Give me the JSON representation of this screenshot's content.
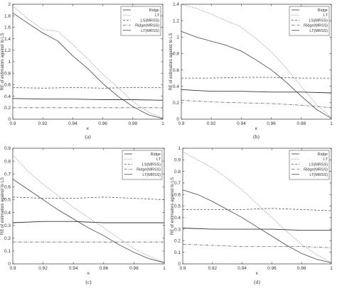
{
  "chart_data": [
    {
      "type": "line",
      "caption": "(a)",
      "xlabel": "κ",
      "ylabel": "RE of estimators against to LS",
      "xlim": [
        0.9,
        1.0
      ],
      "ylim": [
        0,
        2
      ],
      "xticks": [
        "0.9",
        "0.92",
        "0.94",
        "0.96",
        "0.98",
        "1"
      ],
      "yticks": [
        "0",
        "0.2",
        "0.4",
        "0.6",
        "0.8",
        "1",
        "1.2",
        "1.4",
        "1.6",
        "1.8",
        "2"
      ],
      "legend_position": "top-right",
      "series": [
        {
          "name": "Ridge",
          "style": "solid-dark",
          "x": [
            0.9,
            0.92,
            0.94,
            0.96,
            0.98,
            1.0
          ],
          "y": [
            0.36,
            0.35,
            0.35,
            0.34,
            0.34,
            0.33
          ]
        },
        {
          "name": "LT",
          "style": "dotted",
          "x": [
            0.9,
            0.91,
            0.92,
            0.93,
            0.94,
            0.95,
            0.96,
            0.97,
            0.98,
            0.99,
            1.0
          ],
          "y": [
            1.97,
            1.75,
            1.56,
            1.53,
            1.3,
            1.05,
            0.78,
            0.55,
            0.31,
            0.13,
            0.02
          ]
        },
        {
          "name": "LS(MRSS)",
          "style": "dashed",
          "x": [
            0.9,
            0.92,
            0.94,
            0.96,
            0.98,
            1.0
          ],
          "y": [
            0.55,
            0.54,
            0.55,
            0.54,
            0.55,
            0.55
          ]
        },
        {
          "name": "Ridge(MRSS)",
          "style": "dashdot",
          "x": [
            0.9,
            0.92,
            0.94,
            0.96,
            0.98,
            1.0
          ],
          "y": [
            0.2,
            0.2,
            0.2,
            0.2,
            0.2,
            0.2
          ]
        },
        {
          "name": "LT(MRSS)",
          "style": "solid",
          "x": [
            0.9,
            0.91,
            0.92,
            0.93,
            0.94,
            0.95,
            0.96,
            0.97,
            0.98,
            0.99,
            1.0
          ],
          "y": [
            1.85,
            1.67,
            1.5,
            1.36,
            1.1,
            0.88,
            0.62,
            0.4,
            0.22,
            0.08,
            0.01
          ]
        }
      ]
    },
    {
      "type": "line",
      "caption": "(b)",
      "xlabel": "κ",
      "ylabel": "RE of estimators against to LS",
      "xlim": [
        0.9,
        1.0
      ],
      "ylim": [
        0,
        1.4
      ],
      "xticks": [
        "0.9",
        "0.92",
        "0.94",
        "0.96",
        "0.98",
        "1"
      ],
      "yticks": [
        "0",
        "0.2",
        "0.4",
        "0.6",
        "0.8",
        "1",
        "1.2",
        "1.4"
      ],
      "legend_position": "top-right",
      "series": [
        {
          "name": "Ridge",
          "style": "solid-dark",
          "x": [
            0.9,
            0.92,
            0.94,
            0.96,
            0.98,
            1.0
          ],
          "y": [
            0.36,
            0.34,
            0.34,
            0.33,
            0.33,
            0.32
          ]
        },
        {
          "name": "LT",
          "style": "dotted",
          "x": [
            0.9,
            0.91,
            0.92,
            0.93,
            0.94,
            0.95,
            0.96,
            0.97,
            0.98,
            0.99,
            1.0
          ],
          "y": [
            1.4,
            1.35,
            1.28,
            1.2,
            1.12,
            0.98,
            0.82,
            0.62,
            0.4,
            0.18,
            0.02
          ]
        },
        {
          "name": "LS(MRSS)",
          "style": "dashed",
          "x": [
            0.9,
            0.92,
            0.94,
            0.96,
            0.98,
            1.0
          ],
          "y": [
            0.5,
            0.5,
            0.51,
            0.51,
            0.5,
            0.5
          ]
        },
        {
          "name": "Ridge(MRSS)",
          "style": "dashdot",
          "x": [
            0.9,
            0.92,
            0.94,
            0.96,
            0.98,
            1.0
          ],
          "y": [
            0.23,
            0.21,
            0.2,
            0.19,
            0.17,
            0.14
          ]
        },
        {
          "name": "LT(MRSS)",
          "style": "solid",
          "x": [
            0.9,
            0.91,
            0.92,
            0.93,
            0.94,
            0.95,
            0.96,
            0.97,
            0.98,
            0.99,
            1.0
          ],
          "y": [
            1.07,
            1.0,
            0.95,
            0.9,
            0.83,
            0.72,
            0.6,
            0.45,
            0.28,
            0.12,
            0.01
          ]
        }
      ]
    },
    {
      "type": "line",
      "caption": "(c)",
      "xlabel": "κ",
      "ylabel": "RE of estimators against to LS",
      "xlim": [
        0.9,
        1.0
      ],
      "ylim": [
        0,
        0.9
      ],
      "xticks": [
        "0.9",
        "0.92",
        "0.94",
        "0.96",
        "0.98",
        "1"
      ],
      "yticks": [
        "0",
        "0.1",
        "0.2",
        "0.3",
        "0.4",
        "0.5",
        "0.6",
        "0.7",
        "0.8",
        "0.9"
      ],
      "legend_position": "top-right",
      "series": [
        {
          "name": "Ridge",
          "style": "solid-dark",
          "x": [
            0.9,
            0.92,
            0.94,
            0.96,
            0.98,
            1.0
          ],
          "y": [
            0.32,
            0.33,
            0.33,
            0.32,
            0.32,
            0.32
          ]
        },
        {
          "name": "LT",
          "style": "dotted",
          "x": [
            0.9,
            0.91,
            0.92,
            0.93,
            0.94,
            0.95,
            0.96,
            0.97,
            0.98,
            0.99,
            1.0
          ],
          "y": [
            0.85,
            0.72,
            0.62,
            0.53,
            0.44,
            0.36,
            0.28,
            0.2,
            0.12,
            0.06,
            0.01
          ]
        },
        {
          "name": "LS(MRSS)",
          "style": "dashed",
          "x": [
            0.9,
            0.92,
            0.94,
            0.96,
            0.98,
            1.0
          ],
          "y": [
            0.52,
            0.51,
            0.51,
            0.52,
            0.51,
            0.5
          ]
        },
        {
          "name": "Ridge(MRSS)",
          "style": "dashdot",
          "x": [
            0.9,
            0.92,
            0.94,
            0.96,
            0.98,
            1.0
          ],
          "y": [
            0.17,
            0.17,
            0.17,
            0.17,
            0.17,
            0.17
          ]
        },
        {
          "name": "LT(MRSS)",
          "style": "solid",
          "x": [
            0.9,
            0.91,
            0.92,
            0.93,
            0.94,
            0.95,
            0.96,
            0.97,
            0.98,
            0.99,
            1.0
          ],
          "y": [
            0.66,
            0.58,
            0.5,
            0.42,
            0.35,
            0.28,
            0.22,
            0.15,
            0.09,
            0.04,
            0.01
          ]
        }
      ]
    },
    {
      "type": "line",
      "caption": "(d)",
      "xlabel": "κ",
      "ylabel": "RE of estimators against to LS",
      "xlim": [
        0.9,
        1.0
      ],
      "ylim": [
        0,
        1
      ],
      "xticks": [
        "0.9",
        "0.92",
        "0.94",
        "0.96",
        "0.98",
        "1"
      ],
      "yticks": [
        "0",
        "0.1",
        "0.2",
        "0.3",
        "0.4",
        "0.5",
        "0.6",
        "0.7",
        "0.8",
        "0.9",
        "1"
      ],
      "legend_position": "top-right",
      "series": [
        {
          "name": "Ridge",
          "style": "solid-dark",
          "x": [
            0.9,
            0.92,
            0.94,
            0.96,
            0.98,
            1.0
          ],
          "y": [
            0.31,
            0.3,
            0.3,
            0.3,
            0.29,
            0.29
          ]
        },
        {
          "name": "LT",
          "style": "dotted",
          "x": [
            0.9,
            0.91,
            0.92,
            0.93,
            0.94,
            0.95,
            0.96,
            0.97,
            0.98,
            0.99,
            1.0
          ],
          "y": [
            0.97,
            0.9,
            0.83,
            0.74,
            0.64,
            0.52,
            0.4,
            0.28,
            0.17,
            0.08,
            0.01
          ]
        },
        {
          "name": "LS(MRSS)",
          "style": "dashed",
          "x": [
            0.9,
            0.92,
            0.94,
            0.96,
            0.98,
            1.0
          ],
          "y": [
            0.47,
            0.47,
            0.47,
            0.48,
            0.47,
            0.46
          ]
        },
        {
          "name": "Ridge(MRSS)",
          "style": "dashdot",
          "x": [
            0.9,
            0.92,
            0.94,
            0.96,
            0.98,
            1.0
          ],
          "y": [
            0.17,
            0.16,
            0.15,
            0.15,
            0.15,
            0.14
          ]
        },
        {
          "name": "LT(MRSS)",
          "style": "solid",
          "x": [
            0.9,
            0.91,
            0.92,
            0.93,
            0.94,
            0.95,
            0.96,
            0.97,
            0.98,
            0.99,
            1.0
          ],
          "y": [
            0.64,
            0.6,
            0.54,
            0.47,
            0.4,
            0.32,
            0.24,
            0.16,
            0.09,
            0.04,
            0.01
          ]
        }
      ]
    }
  ],
  "colors": {
    "solid-dark": "#333333",
    "dotted": "#888888",
    "dashed": "#555555",
    "dashdot": "#666666",
    "solid": "#444444",
    "axis": "#333333",
    "background": "#ffffff"
  }
}
